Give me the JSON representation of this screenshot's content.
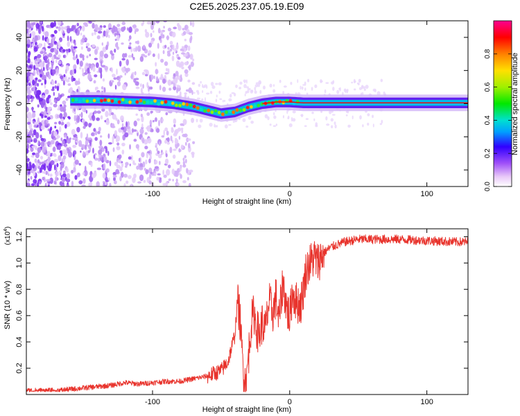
{
  "title": "C2E5.2025.237.05.19.E09",
  "colors": {
    "signal": "#e8332c",
    "line": "#ff0000"
  },
  "chart_data": [
    {
      "type": "heatmap",
      "xlabel": "Height of straight line (km)",
      "ylabel": "Frequency (Hz)",
      "xlim": [
        -192,
        130
      ],
      "ylim": [
        -50,
        50
      ],
      "xticks": [
        -100,
        0,
        100
      ],
      "xtick_labels": [
        "-100",
        "0",
        "100"
      ],
      "yticks": [
        40,
        20,
        0,
        -20,
        -40
      ],
      "ytick_labels": [
        "40",
        "20",
        "0",
        "-20",
        "-40"
      ],
      "ridge": {
        "x": [
          -160,
          -140,
          -120,
          -100,
          -85,
          -70,
          -60,
          -50,
          -40,
          -30,
          -20,
          -10,
          0,
          10,
          50,
          100,
          130
        ],
        "y": [
          2,
          2,
          1.5,
          1,
          0,
          -2,
          -4,
          -6,
          -5,
          -2,
          0,
          1,
          1,
          0.5,
          0.5,
          0.5,
          0.5
        ]
      },
      "colorbar": {
        "label": "Normalized spectral amplitude",
        "range": [
          0.0,
          1.0
        ],
        "ticks": [
          0.0,
          0.2,
          0.4,
          0.6,
          0.8
        ],
        "tick_labels": [
          "0.0",
          "0.2",
          "0.4",
          "0.6",
          "0.8"
        ]
      }
    },
    {
      "type": "line",
      "xlabel": "Height of straight line (km)",
      "ylabel": "SNR (10 * v/v)",
      "scale_label": "(x10",
      "scale_exp": "4",
      "scale_close": ")",
      "xlim": [
        -192,
        130
      ],
      "ylim": [
        0.0,
        1.26
      ],
      "xticks": [
        -100,
        0,
        100
      ],
      "xtick_labels": [
        "-100",
        "0",
        "100"
      ],
      "yticks": [
        0.2,
        0.4,
        0.6,
        0.8,
        1.0,
        1.2
      ],
      "ytick_labels": [
        "0.2",
        "0.4",
        "0.6",
        "0.8",
        "1.0",
        "1.2"
      ],
      "series": [
        {
          "name": "SNR",
          "x": [
            -192,
            -170,
            -150,
            -130,
            -120,
            -110,
            -100,
            -90,
            -80,
            -70,
            -60,
            -50,
            -45,
            -40,
            -38,
            -36,
            -35,
            -34,
            -33,
            -32,
            -30,
            -28,
            -26,
            -24,
            -22,
            -20,
            -18,
            -15,
            -12,
            -10,
            -8,
            -5,
            -2,
            0,
            2,
            5,
            8,
            10,
            12,
            15,
            18,
            20,
            25,
            30,
            40,
            50,
            60,
            80,
            100,
            120,
            130
          ],
          "y": [
            0.03,
            0.03,
            0.05,
            0.07,
            0.09,
            0.08,
            0.09,
            0.1,
            0.1,
            0.12,
            0.14,
            0.18,
            0.25,
            0.45,
            0.72,
            0.55,
            0.35,
            0.22,
            0.12,
            0.08,
            0.3,
            0.55,
            0.62,
            0.5,
            0.45,
            0.55,
            0.48,
            0.7,
            0.62,
            0.75,
            0.55,
            0.85,
            0.65,
            0.58,
            0.78,
            0.7,
            0.68,
            0.8,
            0.95,
            1.0,
            1.05,
            1.0,
            1.08,
            1.12,
            1.16,
            1.18,
            1.18,
            1.18,
            1.17,
            1.16,
            1.16
          ]
        }
      ]
    }
  ]
}
